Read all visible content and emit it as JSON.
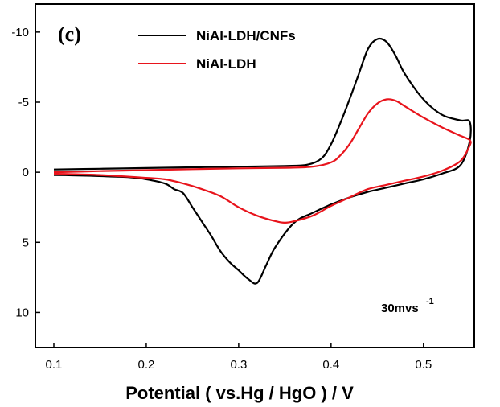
{
  "chart_data": {
    "type": "line",
    "panel_label": "(c)",
    "xlabel": "Potential ( vs.Hg / HgO ) / V",
    "ylabel": "",
    "xlim": [
      0.08,
      0.555
    ],
    "ylim": [
      -12,
      12.5
    ],
    "y_inverted": true,
    "grid": false,
    "legend_position": "top-center",
    "x_ticks": [
      0.1,
      0.2,
      0.3,
      0.4,
      0.5
    ],
    "x_tick_labels": [
      "0.1",
      "0.2",
      "0.3",
      "0.4",
      "0.5"
    ],
    "y_ticks": [
      -10,
      -5,
      0,
      5,
      10
    ],
    "y_tick_labels": [
      "-10",
      "-5",
      "0",
      "5",
      "10"
    ],
    "annotation": {
      "text": "30mvs",
      "sup": "-1",
      "x": 0.47,
      "y": 9.7
    },
    "series": [
      {
        "name": "NiAl-LDH/CNFs",
        "color": "#000000",
        "x": [
          0.1,
          0.15,
          0.2,
          0.25,
          0.3,
          0.35,
          0.375,
          0.39,
          0.4,
          0.41,
          0.42,
          0.43,
          0.44,
          0.45,
          0.46,
          0.47,
          0.48,
          0.5,
          0.52,
          0.54,
          0.55,
          0.55,
          0.54,
          0.52,
          0.5,
          0.48,
          0.46,
          0.44,
          0.42,
          0.4,
          0.38,
          0.36,
          0.34,
          0.33,
          0.32,
          0.31,
          0.3,
          0.29,
          0.28,
          0.27,
          0.26,
          0.25,
          0.24,
          0.23,
          0.22,
          0.2,
          0.18,
          0.16,
          0.14,
          0.12,
          0.1
        ],
        "y": [
          -0.2,
          -0.25,
          -0.3,
          -0.35,
          -0.4,
          -0.45,
          -0.55,
          -1.0,
          -2.0,
          -3.5,
          -5.2,
          -7.0,
          -8.8,
          -9.5,
          -9.3,
          -8.3,
          -7.0,
          -5.2,
          -4.1,
          -3.7,
          -3.6,
          -2.2,
          -0.5,
          0.1,
          0.5,
          0.8,
          1.1,
          1.4,
          1.8,
          2.3,
          2.9,
          3.6,
          5.3,
          6.6,
          7.9,
          7.6,
          7.0,
          6.4,
          5.6,
          4.5,
          3.5,
          2.5,
          1.5,
          1.2,
          0.8,
          0.5,
          0.35,
          0.3,
          0.25,
          0.22,
          0.2
        ]
      },
      {
        "name": "NiAl-LDH",
        "color": "#e8141c",
        "x": [
          0.1,
          0.15,
          0.2,
          0.25,
          0.3,
          0.35,
          0.38,
          0.4,
          0.41,
          0.42,
          0.43,
          0.44,
          0.45,
          0.46,
          0.47,
          0.48,
          0.5,
          0.52,
          0.54,
          0.55,
          0.55,
          0.54,
          0.52,
          0.5,
          0.48,
          0.46,
          0.44,
          0.42,
          0.4,
          0.38,
          0.36,
          0.35,
          0.34,
          0.32,
          0.3,
          0.28,
          0.26,
          0.24,
          0.22,
          0.2,
          0.15,
          0.1
        ],
        "y": [
          0.0,
          -0.08,
          -0.15,
          -0.22,
          -0.28,
          -0.32,
          -0.4,
          -0.7,
          -1.2,
          -2.0,
          -3.1,
          -4.2,
          -4.9,
          -5.2,
          -5.1,
          -4.7,
          -3.9,
          -3.2,
          -2.6,
          -2.3,
          -1.9,
          -0.8,
          -0.1,
          0.3,
          0.6,
          0.9,
          1.2,
          1.8,
          2.4,
          3.1,
          3.5,
          3.6,
          3.5,
          3.1,
          2.5,
          1.7,
          1.2,
          0.8,
          0.5,
          0.4,
          0.2,
          0.1
        ]
      }
    ]
  }
}
